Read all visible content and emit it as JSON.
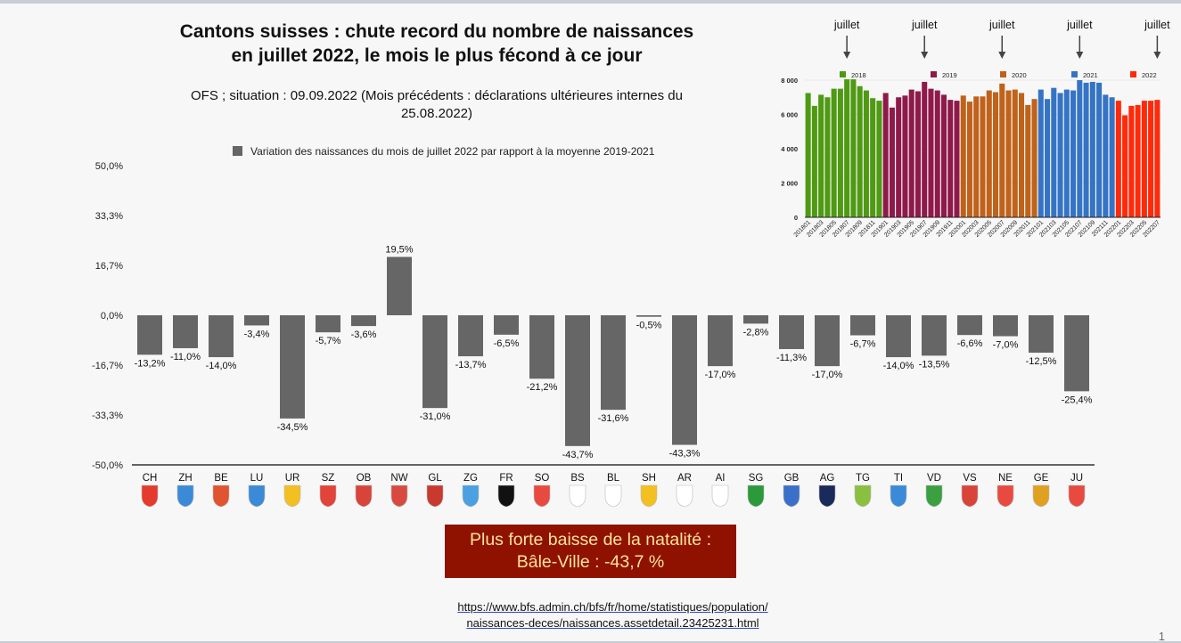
{
  "title": "Cantons suisses : chute record du nombre de naissances en juillet 2022, le mois le plus fécond à ce jour",
  "subtitle": "OFS ; situation : 09.09.2022 (Mois précédents : déclarations ultérieures internes du 25.08.2022)",
  "callout": {
    "line1": "Plus forte baisse de la natalité :",
    "line2": "Bâle-Ville : -43,7 %"
  },
  "link": {
    "line1": "https://www.bfs.admin.ch/bfs/fr/home/statistiques/population/",
    "line2": "naissances-deces/naissances.assetdetail.23425231.html"
  },
  "page_number": "1",
  "colors": {
    "bar": "#666666",
    "callout_bg": "#8f1200",
    "callout_text": "#fbe39a"
  },
  "chart_data": [
    {
      "type": "bar",
      "title": "",
      "legend": [
        "Variation des naissances du mois de juillet 2022 par rapport à la moyenne 2019-2021"
      ],
      "legend_position": "top",
      "categories": [
        "CH",
        "ZH",
        "BE",
        "LU",
        "UR",
        "SZ",
        "OB",
        "NW",
        "GL",
        "ZG",
        "FR",
        "SO",
        "BS",
        "BL",
        "SH",
        "AR",
        "AI",
        "SG",
        "GB",
        "AG",
        "TG",
        "TI",
        "VD",
        "VS",
        "NE",
        "GE",
        "JU"
      ],
      "values": [
        -13.2,
        -11.0,
        -14.0,
        -3.4,
        -34.5,
        -5.7,
        -3.6,
        19.5,
        -31.0,
        -13.7,
        -6.5,
        -21.2,
        -43.7,
        -31.6,
        -0.5,
        -43.3,
        -17.0,
        -2.8,
        -11.3,
        -17.0,
        -6.7,
        -14.0,
        -13.5,
        -6.6,
        -7.0,
        -12.5,
        -25.4
      ],
      "data_labels": [
        "-13,2%",
        "-11,0%",
        "-14,0%",
        "-3,4%",
        "-34,5%",
        "-5,7%",
        "-3,6%",
        "19,5%",
        "-31,0%",
        "-13,7%",
        "-6,5%",
        "-21,2%",
        "-43,7%",
        "-31,6%",
        "-0,5%",
        "-43,3%",
        "-17,0%",
        "-2,8%",
        "-11,3%",
        "-17,0%",
        "-6,7%",
        "-14,0%",
        "-13,5%",
        "-6,6%",
        "-7,0%",
        "-12,5%",
        "-25,4%"
      ],
      "flag_colors": [
        "#e53a2e",
        "#3a8ad8",
        "#e0542f",
        "#3a8ad8",
        "#f2c020",
        "#e2443a",
        "#d8443a",
        "#d84a40",
        "#c83a2e",
        "#4aa0e0",
        "#111111",
        "#e84a40",
        "#ffffff",
        "#ffffff",
        "#f2c020",
        "#ffffff",
        "#ffffff",
        "#2a9a3a",
        "#3a70c8",
        "#1a2a5a",
        "#8ac040",
        "#3a8ad8",
        "#3aa040",
        "#d8443a",
        "#e84a40",
        "#e0a020",
        "#e84a40"
      ],
      "ylim": [
        -50,
        50
      ],
      "yticks": [
        "50,0%",
        "33,3%",
        "16,7%",
        "0,0%",
        "-16,7%",
        "-33,3%",
        "-50,0%"
      ],
      "ytick_values": [
        50,
        33.3,
        16.7,
        0,
        -16.7,
        -33.3,
        -50
      ],
      "grid": false
    },
    {
      "type": "bar",
      "title": "",
      "annotation": "juillet",
      "annotations_at": [
        "201807",
        "201907",
        "202007",
        "202107",
        "202207"
      ],
      "series": [
        {
          "name": "2018",
          "color": "#4f9a13",
          "x": [
            "201801",
            "201802",
            "201803",
            "201804",
            "201805",
            "201806",
            "201807",
            "201808",
            "201809",
            "201810",
            "201811",
            "201812"
          ],
          "values": [
            7250,
            6500,
            7150,
            7000,
            7500,
            7500,
            8050,
            8050,
            7650,
            7400,
            6950,
            6800
          ]
        },
        {
          "name": "2019",
          "color": "#8e1a4a",
          "x": [
            "201901",
            "201902",
            "201903",
            "201904",
            "201905",
            "201906",
            "201907",
            "201908",
            "201909",
            "201910",
            "201911",
            "201912"
          ],
          "values": [
            7250,
            6400,
            7000,
            7100,
            7450,
            7350,
            7900,
            7500,
            7400,
            7150,
            6850,
            6800
          ]
        },
        {
          "name": "2020",
          "color": "#c0621a",
          "x": [
            "202001",
            "202002",
            "202003",
            "202004",
            "202005",
            "202006",
            "202007",
            "202008",
            "202009",
            "202010",
            "202011",
            "202012"
          ],
          "values": [
            7100,
            6750,
            7050,
            7050,
            7400,
            7300,
            7800,
            7400,
            7450,
            7250,
            6550,
            6900
          ]
        },
        {
          "name": "2021",
          "color": "#3574c4",
          "x": [
            "202101",
            "202102",
            "202103",
            "202104",
            "202105",
            "202106",
            "202107",
            "202108",
            "202109",
            "202110",
            "202111",
            "202112"
          ],
          "values": [
            7450,
            6900,
            7550,
            7250,
            7450,
            7400,
            8000,
            7850,
            7900,
            7850,
            7150,
            7000
          ]
        },
        {
          "name": "2022",
          "color": "#ff2a0a",
          "x": [
            "202201",
            "202202",
            "202203",
            "202204",
            "202205",
            "202206",
            "202207"
          ],
          "values": [
            6800,
            5950,
            6500,
            6550,
            6800,
            6800,
            6850
          ]
        }
      ],
      "ylim": [
        0,
        8000
      ],
      "yticks": [
        "0",
        "2 000",
        "4 000",
        "6 000",
        "8 000"
      ],
      "ytick_values": [
        0,
        2000,
        4000,
        6000,
        8000
      ],
      "legend_position": "top"
    }
  ]
}
